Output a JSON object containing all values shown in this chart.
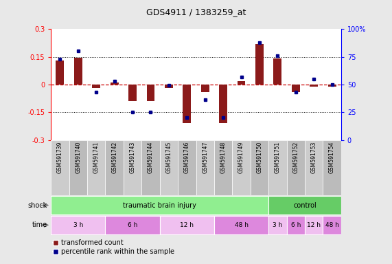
{
  "title": "GDS4911 / 1383259_at",
  "samples": [
    "GSM591739",
    "GSM591740",
    "GSM591741",
    "GSM591742",
    "GSM591743",
    "GSM591744",
    "GSM591745",
    "GSM591746",
    "GSM591747",
    "GSM591748",
    "GSM591749",
    "GSM591750",
    "GSM591751",
    "GSM591752",
    "GSM591753",
    "GSM591754"
  ],
  "transformed_count": [
    0.13,
    0.145,
    -0.02,
    0.01,
    -0.09,
    -0.09,
    -0.02,
    -0.21,
    -0.04,
    -0.21,
    0.02,
    0.22,
    0.14,
    -0.04,
    -0.01,
    -0.01
  ],
  "percentile_rank": [
    73,
    80,
    43,
    53,
    25,
    25,
    49,
    20,
    36,
    20,
    57,
    88,
    76,
    43,
    55,
    50
  ],
  "ylim_left": [
    -0.3,
    0.3
  ],
  "ylim_right": [
    0,
    100
  ],
  "yticks_left": [
    -0.3,
    -0.15,
    0.0,
    0.15,
    0.3
  ],
  "yticks_right": [
    0,
    25,
    50,
    75,
    100
  ],
  "ytick_labels_left": [
    "-0.3",
    "-0.15",
    "0",
    "0.15",
    "0.3"
  ],
  "ytick_labels_right": [
    "0",
    "25",
    "50",
    "75",
    "100%"
  ],
  "bar_color": "#8B1A1A",
  "dot_color": "#00008B",
  "hline_color": "#CC0000",
  "dotted_color": "black",
  "shock_groups": [
    {
      "label": "traumatic brain injury",
      "start": 0,
      "end": 12,
      "color": "#90EE90"
    },
    {
      "label": "control",
      "start": 12,
      "end": 16,
      "color": "#66CC66"
    }
  ],
  "time_groups": [
    {
      "label": "3 h",
      "start": 0,
      "end": 3,
      "color": "#F0C0F0"
    },
    {
      "label": "6 h",
      "start": 3,
      "end": 6,
      "color": "#DD88DD"
    },
    {
      "label": "12 h",
      "start": 6,
      "end": 9,
      "color": "#F0C0F0"
    },
    {
      "label": "48 h",
      "start": 9,
      "end": 12,
      "color": "#DD88DD"
    },
    {
      "label": "3 h",
      "start": 12,
      "end": 13,
      "color": "#F0C0F0"
    },
    {
      "label": "6 h",
      "start": 13,
      "end": 14,
      "color": "#DD88DD"
    },
    {
      "label": "12 h",
      "start": 14,
      "end": 15,
      "color": "#F0C0F0"
    },
    {
      "label": "48 h",
      "start": 15,
      "end": 16,
      "color": "#DD88DD"
    }
  ],
  "bg_color": "#E8E8E8",
  "plot_bg": "#FFFFFF",
  "label_colors": [
    "#CCCCCC",
    "#BBBBBB"
  ]
}
